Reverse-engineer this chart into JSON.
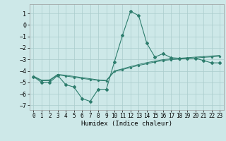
{
  "title": "",
  "xlabel": "Humidex (Indice chaleur)",
  "background_color": "#cde8e8",
  "grid_color": "#aacccc",
  "line_color": "#2d7d6d",
  "xlim": [
    -0.5,
    23.5
  ],
  "ylim": [
    -7.4,
    1.8
  ],
  "yticks": [
    1,
    0,
    -1,
    -2,
    -3,
    -4,
    -5,
    -6,
    -7
  ],
  "xticks": [
    0,
    1,
    2,
    3,
    4,
    5,
    6,
    7,
    8,
    9,
    10,
    11,
    12,
    13,
    14,
    15,
    16,
    17,
    18,
    19,
    20,
    21,
    22,
    23
  ],
  "line1_x": [
    0,
    1,
    2,
    3,
    4,
    5,
    6,
    7,
    8,
    9,
    10,
    11,
    12,
    13,
    14,
    15,
    16,
    17,
    18,
    19,
    20,
    21,
    22,
    23
  ],
  "line1_y": [
    -4.5,
    -5.0,
    -5.0,
    -4.4,
    -5.2,
    -5.4,
    -6.4,
    -6.65,
    -5.6,
    -5.6,
    -3.2,
    -0.9,
    1.2,
    0.8,
    -1.6,
    -2.8,
    -2.5,
    -2.85,
    -2.9,
    -2.9,
    -2.9,
    -3.1,
    -3.3,
    -3.3
  ],
  "line2_x": [
    0,
    1,
    2,
    3,
    4,
    5,
    6,
    7,
    8,
    9,
    10,
    11,
    12,
    13,
    14,
    15,
    16,
    17,
    18,
    19,
    20,
    21,
    22,
    23
  ],
  "line2_y": [
    -4.5,
    -4.85,
    -4.85,
    -4.35,
    -4.45,
    -4.55,
    -4.65,
    -4.75,
    -4.82,
    -4.87,
    -4.05,
    -3.88,
    -3.7,
    -3.52,
    -3.38,
    -3.22,
    -3.1,
    -3.02,
    -2.97,
    -2.92,
    -2.88,
    -2.82,
    -2.78,
    -2.72
  ],
  "line3_x": [
    0,
    1,
    2,
    3,
    4,
    5,
    6,
    7,
    8,
    9,
    10,
    11,
    12,
    13,
    14,
    15,
    16,
    17,
    18,
    19,
    20,
    21,
    22,
    23
  ],
  "line3_y": [
    -4.45,
    -4.8,
    -4.78,
    -4.3,
    -4.38,
    -4.48,
    -4.58,
    -4.68,
    -4.78,
    -4.82,
    -4.0,
    -3.82,
    -3.62,
    -3.44,
    -3.28,
    -3.15,
    -3.02,
    -2.95,
    -2.9,
    -2.85,
    -2.8,
    -2.75,
    -2.7,
    -2.65
  ],
  "tick_fontsize": 5.5,
  "xlabel_fontsize": 6.5
}
